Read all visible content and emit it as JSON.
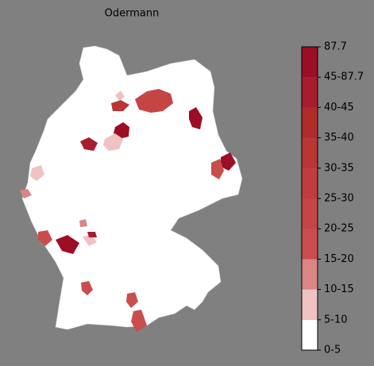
{
  "title": "Odermann",
  "colorbar": {
    "ticks": [
      "0-5",
      "5-10",
      "10-15",
      "15-20",
      "20-25",
      "25-30",
      "30-35",
      "35-40",
      "40-45",
      "45-87.7",
      "87.7"
    ],
    "colors": [
      "#ffffff",
      "#f0c2c2",
      "#db8585",
      "#ca4d4d",
      "#c54545",
      "#c13d3d",
      "#bb3535",
      "#b22b2b",
      "#a71d2d",
      "#9b0e23"
    ]
  }
}
